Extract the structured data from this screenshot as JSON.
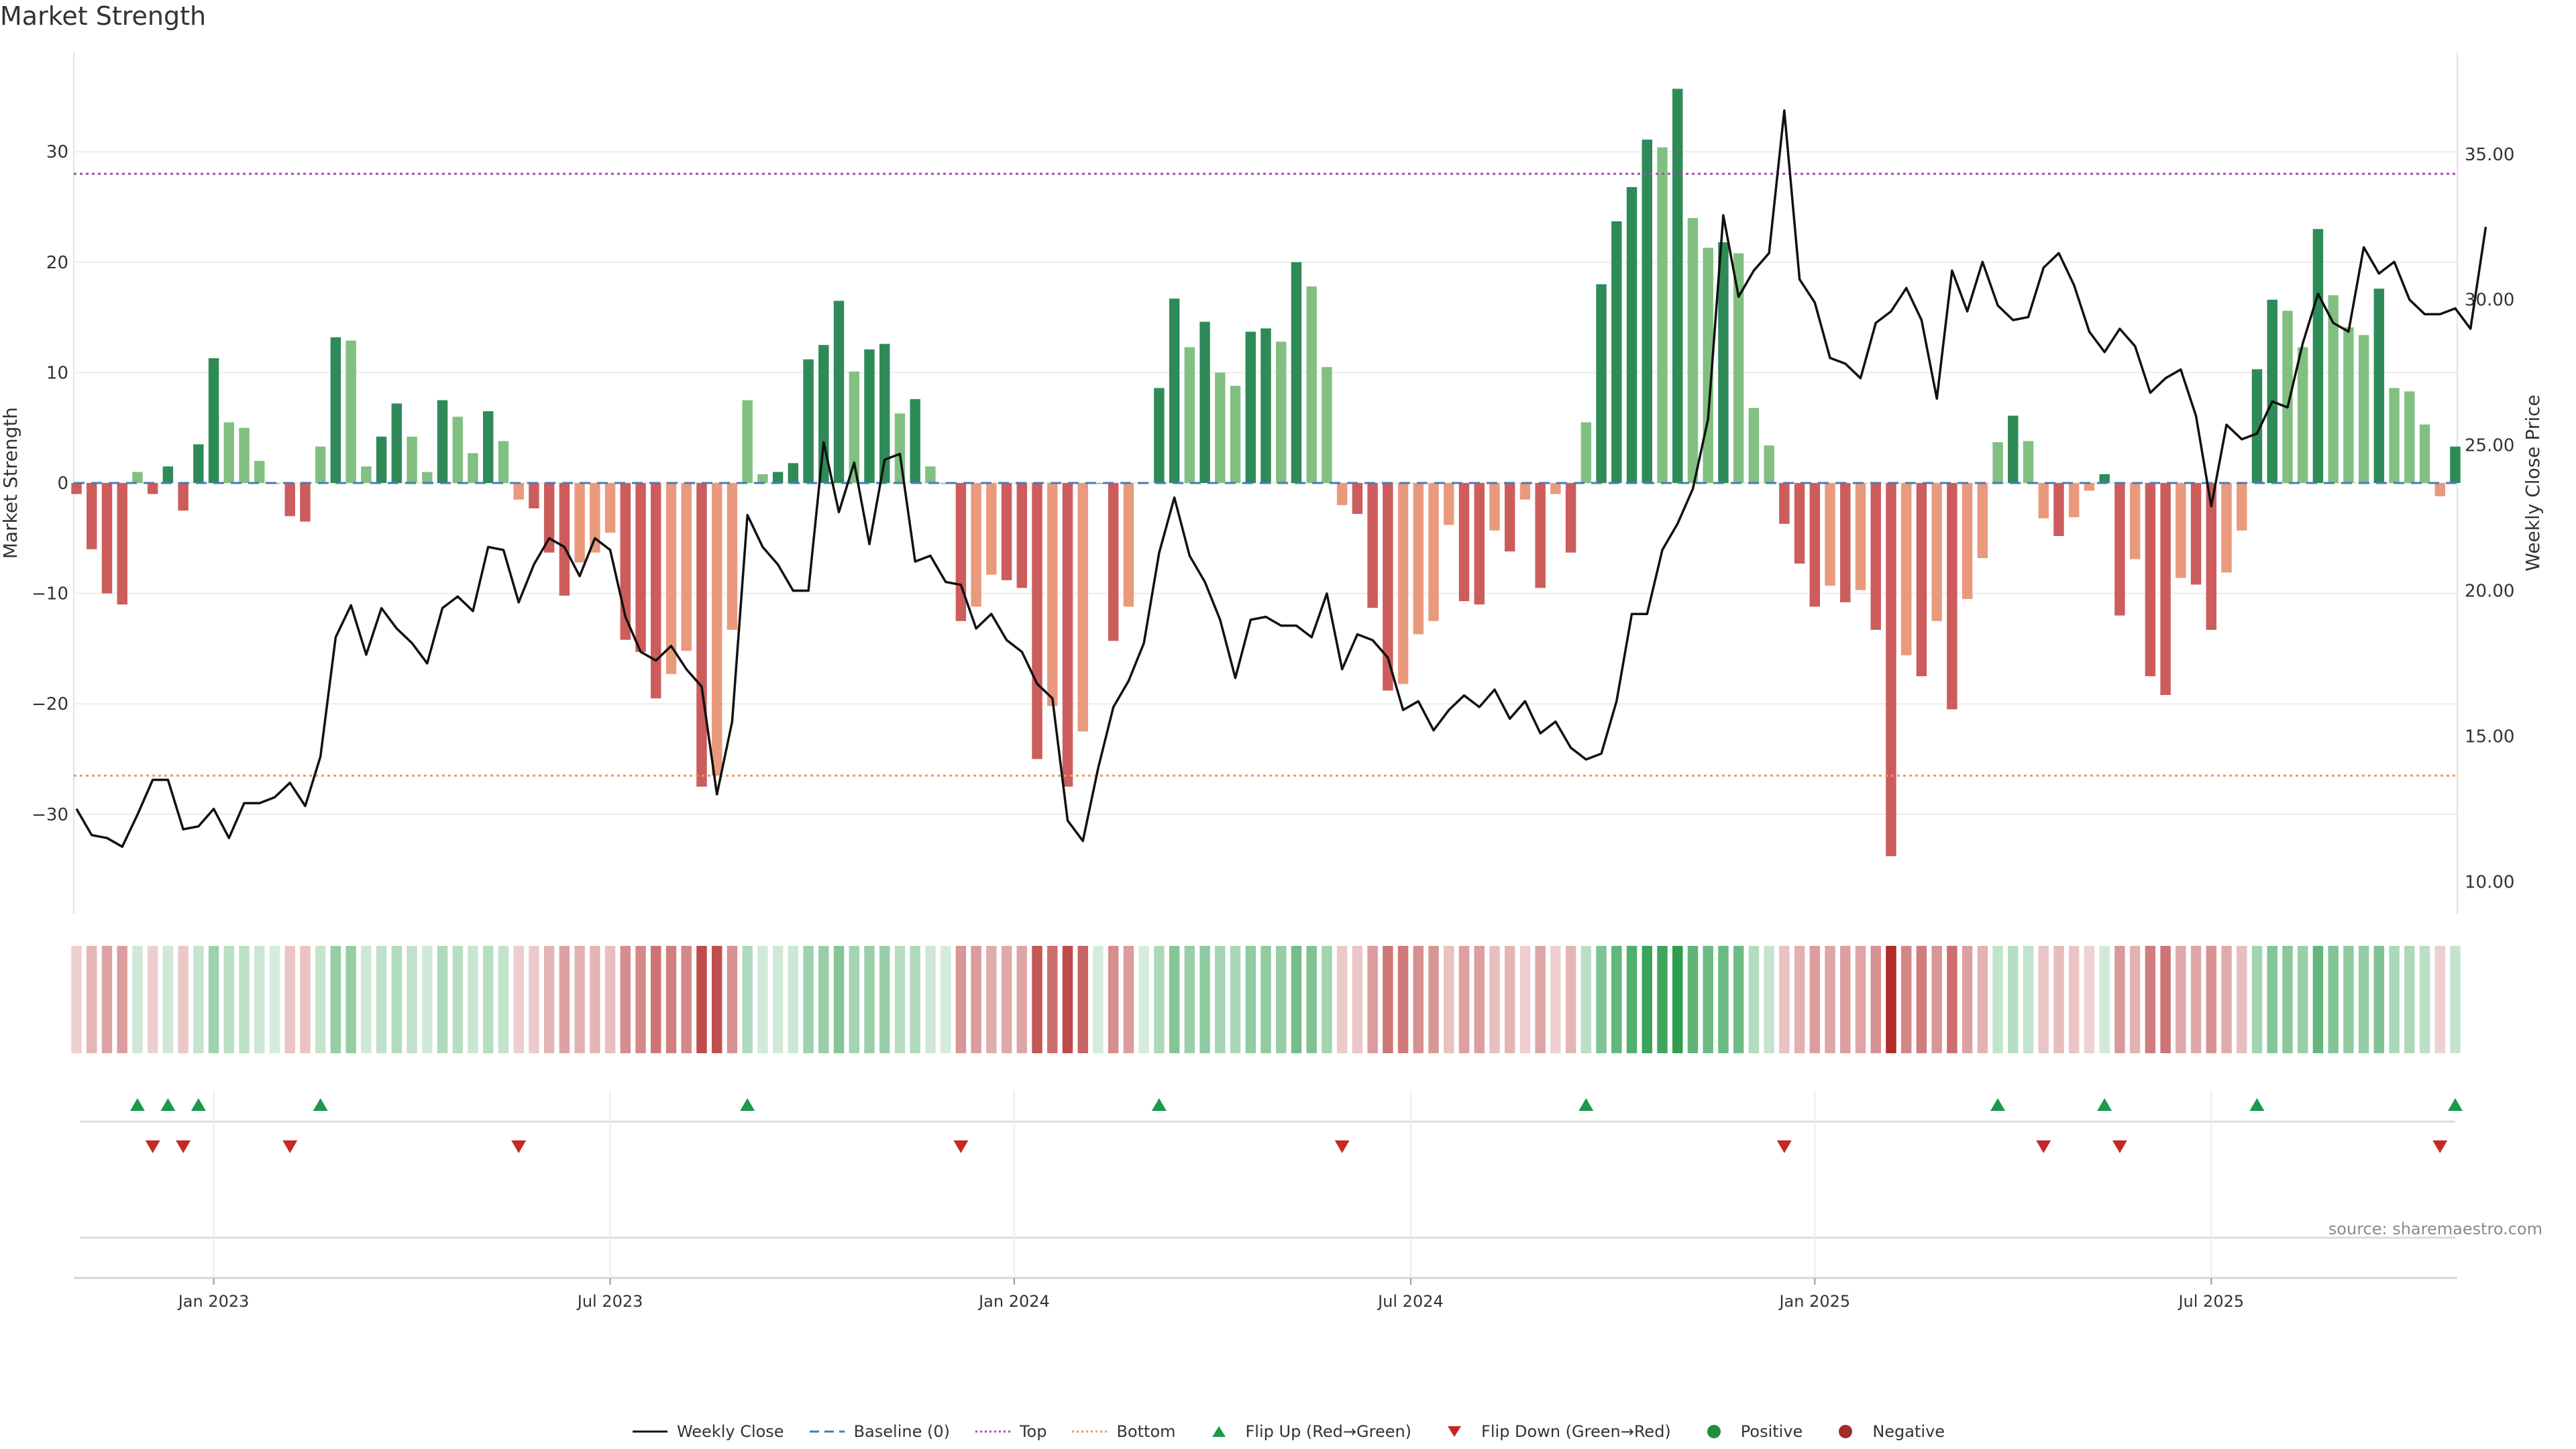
{
  "title": "Market Strength",
  "source": "source: sharemaestro.com",
  "legend": [
    {
      "label": "Weekly Close",
      "kind": "line",
      "color": "#111111"
    },
    {
      "label": "Baseline (0)",
      "kind": "dash",
      "color": "#4a7ab5"
    },
    {
      "label": "Top",
      "kind": "dot",
      "color": "#a24bb1"
    },
    {
      "label": "Bottom",
      "kind": "dot",
      "color": "#e99a63"
    },
    {
      "label": "Flip Up (Red→Green)",
      "kind": "tri-up",
      "color": "#1a9a4a"
    },
    {
      "label": "Flip Down (Green→Red)",
      "kind": "tri-down",
      "color": "#c62828"
    },
    {
      "label": "Positive",
      "kind": "circle",
      "color": "#1e8e3e"
    },
    {
      "label": "Negative",
      "kind": "circle",
      "color": "#a52a2a"
    }
  ],
  "chart_data": {
    "type": "bar",
    "title": "Market Strength",
    "ylabel": "Market Strength",
    "y2label": "Weekly Close Price",
    "ylim": [
      -39,
      39
    ],
    "y2lim": [
      8.9,
      38.5
    ],
    "yticks": [
      -30,
      -20,
      -10,
      0,
      10,
      20,
      30
    ],
    "y2ticks": [
      "10.00",
      "15.00",
      "20.00",
      "25.00",
      "30.00",
      "35.00"
    ],
    "xticks": [
      {
        "label": "Jan 2023",
        "index": 9
      },
      {
        "label": "Jul 2023",
        "index": 35
      },
      {
        "label": "Jan 2024",
        "index": 61.5
      },
      {
        "label": "Jul 2024",
        "index": 87.5
      },
      {
        "label": "Jan 2025",
        "index": 114
      },
      {
        "label": "Jul 2025",
        "index": 140
      }
    ],
    "top_line": 28,
    "bottom_line": -26.5,
    "baseline": 0,
    "strength": [
      -1,
      -6,
      -10,
      -11,
      1,
      -1,
      1.5,
      -2.5,
      3.5,
      11.3,
      5.5,
      5,
      2,
      0,
      -3,
      -3.5,
      3.3,
      13.2,
      12.9,
      1.5,
      4.2,
      7.2,
      4.2,
      1,
      7.5,
      6,
      2.7,
      6.5,
      3.8,
      -1.5,
      -2.3,
      -6.3,
      -10.2,
      -7.2,
      -6.3,
      -4.5,
      -14.2,
      -15.3,
      -19.5,
      -17.3,
      -15.2,
      -27.5,
      -26.5,
      -13.3,
      7.5,
      0.8,
      1,
      1.8,
      11.2,
      12.5,
      16.5,
      10.1,
      12.1,
      12.6,
      6.3,
      7.6,
      1.5,
      0,
      -12.5,
      -11.2,
      -8.3,
      -8.8,
      -9.5,
      -25,
      -20.2,
      -27.5,
      -22.5,
      0,
      -14.3,
      -11.2,
      0,
      8.6,
      16.7,
      12.3,
      14.6,
      10,
      8.8,
      13.7,
      14,
      12.8,
      20,
      17.8,
      10.5,
      -2,
      -2.8,
      -11.3,
      -18.8,
      -18.2,
      -13.7,
      -12.5,
      -3.8,
      -10.7,
      -11,
      -4.3,
      -6.2,
      -1.5,
      -9.5,
      -1,
      -6.3,
      5.5,
      18,
      23.7,
      26.8,
      31.1,
      30.4,
      35.7,
      24,
      21.3,
      21.8,
      20.8,
      6.8,
      3.4,
      -3.7,
      -7.3,
      -11.2,
      -9.3,
      -10.8,
      -9.7,
      -13.3,
      -33.8,
      -15.6,
      -17.5,
      -12.5,
      -20.5,
      -10.5,
      -6.8,
      3.7,
      6.1,
      3.8,
      -3.2,
      -4.8,
      -3.1,
      -0.7,
      0.8,
      -12,
      -6.9,
      -17.5,
      -19.2,
      -8.6,
      -9.2,
      -13.3,
      -8.1,
      -4.3,
      10.3,
      16.6,
      15.6,
      12.3,
      23,
      17,
      14.1,
      13.4,
      17.6,
      8.6,
      8.3,
      5.3,
      -1.2,
      3.3
    ],
    "close": [
      12.5,
      11.6,
      11.5,
      11.2,
      12.3,
      13.5,
      13.5,
      11.8,
      11.9,
      12.5,
      11.5,
      12.7,
      12.7,
      12.9,
      13.4,
      12.6,
      14.3,
      18.4,
      19.5,
      17.8,
      19.4,
      18.7,
      18.2,
      17.5,
      19.4,
      19.8,
      19.3,
      21.5,
      21.4,
      19.6,
      20.9,
      21.8,
      21.5,
      20.5,
      21.8,
      21.4,
      19.1,
      17.9,
      17.6,
      18.1,
      17.3,
      16.7,
      13.0,
      15.5,
      22.6,
      21.5,
      20.9,
      20.0,
      20.0,
      25.1,
      22.7,
      24.4,
      21.6,
      24.5,
      24.7,
      21.0,
      21.2,
      20.3,
      20.2,
      18.7,
      19.2,
      18.3,
      17.9,
      16.8,
      16.3,
      12.1,
      11.4,
      13.9,
      16.0,
      16.9,
      18.2,
      21.3,
      23.2,
      21.2,
      20.3,
      19.0,
      17.0,
      19.0,
      19.1,
      18.8,
      18.8,
      18.4,
      19.9,
      17.3,
      18.5,
      18.3,
      17.7,
      15.9,
      16.2,
      15.2,
      15.9,
      16.4,
      16.0,
      16.6,
      15.6,
      16.2,
      15.1,
      15.5,
      14.6,
      14.2,
      14.4,
      16.2,
      19.2,
      19.2,
      21.4,
      22.3,
      23.5,
      25.9,
      32.9,
      30.1,
      31.0,
      31.6,
      36.5,
      30.7,
      29.9,
      28.0,
      27.8,
      27.3,
      29.2,
      29.6,
      30.4,
      29.3,
      26.6,
      31.0,
      29.6,
      31.3,
      29.8,
      29.3,
      29.4,
      31.1,
      31.6,
      30.5,
      28.9,
      28.2,
      29.0,
      28.4,
      26.8,
      27.3,
      27.6,
      26.0,
      22.9,
      25.7,
      25.2,
      25.4,
      26.5,
      26.3,
      28.5,
      30.2,
      29.2,
      28.9,
      31.8,
      30.9,
      31.3,
      30.0,
      29.5,
      29.5,
      29.7,
      29.0,
      32.5
    ],
    "flips_up": [
      4,
      6,
      8,
      16,
      44,
      71,
      99,
      126,
      133,
      143,
      156
    ],
    "flips_down": [
      5,
      7,
      14,
      29,
      58,
      83,
      112,
      129,
      134,
      155
    ]
  }
}
